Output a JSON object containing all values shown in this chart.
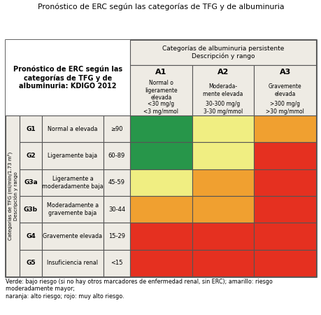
{
  "title": "Pronóstico de ERC según las categorías de TFG y de albuminuria",
  "subtitle_box": "Pronóstico de ERC según las\ncategorías de TFG y de\nalbuminuria: KDIGO 2012",
  "alb_header": "Categorías de albuminuria persistente\nDescripción y rango",
  "tfg_header": "Categorías de TFG (ml/min/1.73 m²)\nDescripción y rango",
  "col_headers": [
    "A1",
    "A2",
    "A3"
  ],
  "col_sub": [
    "Normal o\nligeramente\nelevada",
    "Moderada-\nmente elevada",
    "Gravemente\nelevada"
  ],
  "col_range": [
    "<30 mg/g\n<3 mg/mmol",
    "30-300 mg/g\n3-30 mg/mmol",
    ">300 mg/g\n>30 mg/mmol"
  ],
  "row_labels": [
    "G1",
    "G2",
    "G3a",
    "G3b",
    "G4",
    "G5"
  ],
  "row_desc": [
    "Normal a elevada",
    "Ligeramente baja",
    "Ligeramente a\nmoderadamente baja",
    "Moderadamente a\ngravemente baja",
    "Gravemente elevada",
    "Insuficiencia renal"
  ],
  "row_range": [
    "≥90",
    "60-89",
    "45-59",
    "30-44",
    "15-29",
    "<15"
  ],
  "colors": {
    "green": "#27964a",
    "yellow": "#f0ee82",
    "orange": "#f0a030",
    "red": "#e53020",
    "light_gray": "#eeebe4",
    "border": "#555555",
    "white": "#ffffff"
  },
  "grid": [
    [
      "green",
      "yellow",
      "orange"
    ],
    [
      "green",
      "yellow",
      "red"
    ],
    [
      "yellow",
      "orange",
      "red"
    ],
    [
      "orange",
      "orange",
      "red"
    ],
    [
      "red",
      "red",
      "red"
    ],
    [
      "red",
      "red",
      "red"
    ]
  ],
  "footnote": "Verde: bajo riesgo (si no hay otros marcadores de enfermedad renal, sin ERC); amarillo: riesgo\nmoderadamente mayor;\nnaranja: alto riesgo; rojo: muy alto riesgo."
}
